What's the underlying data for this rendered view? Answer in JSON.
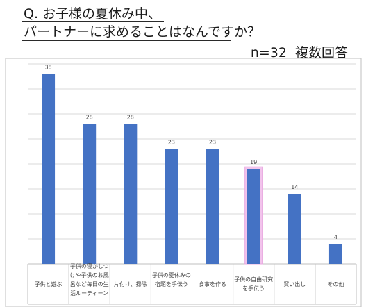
{
  "question": {
    "line1": "Q. お子様の夏休み中、",
    "line2": "パートナーに求めることはなんですか？"
  },
  "meta": {
    "n": "n=32",
    "type": "複数回答"
  },
  "colors": {
    "bar": "#4472c4",
    "highlight": "#f2c4ec",
    "grid": "#d9d9d9",
    "axis": "#bfbfbf",
    "label": "#404040"
  },
  "chart_data": {
    "type": "bar",
    "categories": [
      "子供と遊ぶ",
      "子供の寝かしつけや子供のお風呂など毎日の生活ルーティーン",
      "片付け、掃除",
      "子供の夏休みの宿題を手伝う",
      "食事を作る",
      "子供の自由研究を手伝う",
      "買い出し",
      "その他"
    ],
    "values": [
      38,
      28,
      28,
      23,
      23,
      19,
      14,
      4
    ],
    "highlight_index": 5,
    "ylim": [
      0,
      40
    ],
    "grid": true,
    "data_labels": true
  }
}
